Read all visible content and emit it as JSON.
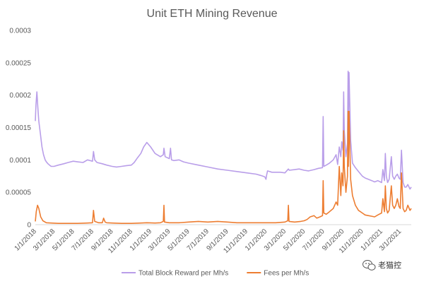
{
  "chart_data": {
    "type": "line",
    "title": "Unit ETH Mining Revenue",
    "xlabel": "",
    "ylabel": "",
    "ylim": [
      0,
      0.0003
    ],
    "yticks": [
      "0",
      "0.00005",
      "0.0001",
      "0.00015",
      "0.0002",
      "0.00025",
      "0.0003"
    ],
    "xticks": [
      "1/1/2018",
      "3/1/2018",
      "5/1/2018",
      "7/1/2018",
      "9/1/2018",
      "11/1/2018",
      "1/1/2019",
      "3/1/2019",
      "5/1/2019",
      "7/1/2019",
      "9/1/2019",
      "11/1/2019",
      "1/1/2020",
      "3/1/2020",
      "5/1/2020",
      "7/1/2020",
      "9/1/2020",
      "11/1/2020",
      "1/1/2021",
      "3/1/2021"
    ],
    "xlim": [
      "2018-01-01",
      "2021-04-05"
    ],
    "grid": false,
    "legend": "bottom",
    "series": [
      {
        "name": "Total Block Reward per Mh/s",
        "color": "#b99ee9",
        "x": [
          "2018-01-01",
          "2018-01-03",
          "2018-01-06",
          "2018-01-09",
          "2018-01-12",
          "2018-01-17",
          "2018-01-22",
          "2018-01-27",
          "2018-02-01",
          "2018-02-05",
          "2018-02-10",
          "2018-02-15",
          "2018-02-20",
          "2018-03-01",
          "2018-03-15",
          "2018-04-01",
          "2018-04-15",
          "2018-05-01",
          "2018-05-15",
          "2018-06-01",
          "2018-06-15",
          "2018-07-01",
          "2018-07-04",
          "2018-07-08",
          "2018-07-15",
          "2018-08-01",
          "2018-08-15",
          "2018-09-01",
          "2018-09-15",
          "2018-10-01",
          "2018-10-15",
          "2018-11-01",
          "2018-11-10",
          "2018-11-20",
          "2018-12-01",
          "2018-12-10",
          "2018-12-20",
          "2019-01-01",
          "2019-01-15",
          "2019-02-01",
          "2019-02-10",
          "2019-02-12",
          "2019-02-16",
          "2019-03-01",
          "2019-03-05",
          "2019-03-08",
          "2019-03-15",
          "2019-04-01",
          "2019-04-15",
          "2019-05-01",
          "2019-06-01",
          "2019-07-01",
          "2019-08-01",
          "2019-09-01",
          "2019-10-01",
          "2019-11-01",
          "2019-12-01",
          "2019-12-15",
          "2019-12-28",
          "2020-01-01",
          "2020-01-03",
          "2020-01-06",
          "2020-01-20",
          "2020-02-01",
          "2020-02-15",
          "2020-03-01",
          "2020-03-12",
          "2020-03-15",
          "2020-04-01",
          "2020-04-15",
          "2020-05-01",
          "2020-05-15",
          "2020-06-01",
          "2020-06-15",
          "2020-06-28",
          "2020-06-30",
          "2020-07-02",
          "2020-07-10",
          "2020-07-20",
          "2020-08-01",
          "2020-08-10",
          "2020-08-15",
          "2020-08-20",
          "2020-08-25",
          "2020-08-28",
          "2020-09-01",
          "2020-09-03",
          "2020-09-05",
          "2020-09-10",
          "2020-09-15",
          "2020-09-17",
          "2020-09-18",
          "2020-09-20",
          "2020-09-25",
          "2020-10-01",
          "2020-10-10",
          "2020-10-20",
          "2020-11-01",
          "2020-11-10",
          "2020-11-20",
          "2020-12-01",
          "2020-12-10",
          "2020-12-20",
          "2021-01-01",
          "2021-01-05",
          "2021-01-10",
          "2021-01-13",
          "2021-01-16",
          "2021-01-20",
          "2021-01-25",
          "2021-02-01",
          "2021-02-05",
          "2021-02-10",
          "2021-02-15",
          "2021-02-20",
          "2021-02-25",
          "2021-03-01",
          "2021-03-05",
          "2021-03-10",
          "2021-03-15",
          "2021-03-20",
          "2021-03-25",
          "2021-04-01",
          "2021-04-05"
        ],
        "y": [
          0.00016,
          0.000185,
          0.000205,
          0.00018,
          0.00016,
          0.00014,
          0.00012,
          0.000108,
          0.0001,
          9.7e-05,
          9.4e-05,
          9.2e-05,
          9e-05,
          9e-05,
          9.2e-05,
          9.4e-05,
          9.6e-05,
          9.8e-05,
          9.7e-05,
          9.6e-05,
          0.0001,
          9.8e-05,
          0.000113,
          0.0001,
          9.6e-05,
          9.4e-05,
          9.2e-05,
          9e-05,
          8.9e-05,
          9e-05,
          9.1e-05,
          9.2e-05,
          9.6e-05,
          0.000103,
          0.00011,
          0.00012,
          0.000127,
          0.00012,
          0.00011,
          0.000105,
          0.000108,
          0.000118,
          0.000105,
          0.000102,
          0.000118,
          0.0001,
          9.9e-05,
          0.0001,
          9.7e-05,
          9.5e-05,
          9.2e-05,
          8.9e-05,
          8.6e-05,
          8.4e-05,
          8.2e-05,
          8e-05,
          7.8e-05,
          7.6e-05,
          7.4e-05,
          7e-05,
          7.6e-05,
          8.3e-05,
          8.1e-05,
          8.1e-05,
          8.1e-05,
          8e-05,
          8.6e-05,
          8.4e-05,
          8.5e-05,
          8.6e-05,
          8.4e-05,
          8.3e-05,
          8.5e-05,
          8.7e-05,
          8.8e-05,
          0.000167,
          9e-05,
          9.2e-05,
          9.5e-05,
          0.0001,
          0.000108,
          9.3e-05,
          0.00012,
          0.000105,
          0.000128,
          0.000115,
          0.000205,
          0.000145,
          0.000105,
          0.000125,
          0.000237,
          0.000145,
          0.000235,
          0.00013,
          9.5e-05,
          8.8e-05,
          8.2e-05,
          7.5e-05,
          7.2e-05,
          7e-05,
          6.8e-05,
          6.6e-05,
          6.8e-05,
          6.5e-05,
          8.5e-05,
          6.8e-05,
          0.00011,
          7.5e-05,
          6.5e-05,
          7e-05,
          0.000105,
          7.5e-05,
          7e-05,
          7.5e-05,
          7.8e-05,
          7.2e-05,
          7e-05,
          0.000115,
          6.5e-05,
          5.8e-05,
          5.8e-05,
          6.2e-05,
          5.5e-05,
          5.8e-05
        ]
      },
      {
        "name": "Fees per Mh/s",
        "color": "#ed7d31",
        "x": [
          "2018-01-01",
          "2018-01-04",
          "2018-01-08",
          "2018-01-12",
          "2018-01-18",
          "2018-01-25",
          "2018-02-05",
          "2018-02-20",
          "2018-03-15",
          "2018-04-15",
          "2018-05-15",
          "2018-06-15",
          "2018-07-01",
          "2018-07-04",
          "2018-07-08",
          "2018-07-20",
          "2018-08-01",
          "2018-08-05",
          "2018-08-10",
          "2018-08-15",
          "2018-09-01",
          "2018-10-01",
          "2018-11-01",
          "2018-12-01",
          "2018-12-20",
          "2019-01-15",
          "2019-02-01",
          "2019-02-10",
          "2019-02-12",
          "2019-02-14",
          "2019-03-01",
          "2019-04-01",
          "2019-05-01",
          "2019-06-01",
          "2019-07-01",
          "2019-08-01",
          "2019-09-01",
          "2019-10-01",
          "2019-11-01",
          "2019-12-01",
          "2020-01-01",
          "2020-02-01",
          "2020-03-01",
          "2020-03-10",
          "2020-03-12",
          "2020-03-14",
          "2020-04-01",
          "2020-04-20",
          "2020-05-01",
          "2020-05-10",
          "2020-05-20",
          "2020-06-01",
          "2020-06-10",
          "2020-06-20",
          "2020-06-28",
          "2020-06-30",
          "2020-07-02",
          "2020-07-10",
          "2020-07-20",
          "2020-08-01",
          "2020-08-10",
          "2020-08-15",
          "2020-08-20",
          "2020-08-25",
          "2020-08-28",
          "2020-09-01",
          "2020-09-03",
          "2020-09-05",
          "2020-09-10",
          "2020-09-15",
          "2020-09-17",
          "2020-09-18",
          "2020-09-20",
          "2020-09-25",
          "2020-10-01",
          "2020-10-10",
          "2020-10-20",
          "2020-11-01",
          "2020-11-10",
          "2020-11-20",
          "2020-12-01",
          "2020-12-10",
          "2020-12-20",
          "2021-01-01",
          "2021-01-05",
          "2021-01-10",
          "2021-01-13",
          "2021-01-16",
          "2021-01-20",
          "2021-01-25",
          "2021-02-01",
          "2021-02-05",
          "2021-02-10",
          "2021-02-15",
          "2021-02-20",
          "2021-02-25",
          "2021-03-01",
          "2021-03-05",
          "2021-03-10",
          "2021-03-15",
          "2021-03-20",
          "2021-03-25",
          "2021-04-01",
          "2021-04-05"
        ],
        "y": [
          5e-06,
          2e-05,
          3e-05,
          2.5e-05,
          1.2e-05,
          6e-06,
          3e-06,
          2.5e-06,
          2e-06,
          2e-06,
          2e-06,
          2.5e-06,
          3e-06,
          2.2e-05,
          5e-06,
          3e-06,
          3e-06,
          1e-05,
          4e-06,
          3e-06,
          2.5e-06,
          2e-06,
          2e-06,
          2.5e-06,
          3e-06,
          2.5e-06,
          3e-06,
          5e-06,
          3e-05,
          4e-06,
          3e-06,
          3e-06,
          4e-06,
          5e-06,
          4e-06,
          5e-06,
          4e-06,
          3e-06,
          3e-06,
          3e-06,
          3e-06,
          3e-06,
          4e-06,
          6e-06,
          3e-05,
          5e-06,
          4e-06,
          5e-06,
          6e-06,
          8e-06,
          1.2e-05,
          1.4e-05,
          1e-05,
          1.2e-05,
          1.4e-05,
          6.8e-05,
          1.8e-05,
          1.6e-05,
          2e-05,
          2.5e-05,
          3.5e-05,
          3e-05,
          9e-05,
          4.5e-05,
          8e-05,
          6e-05,
          0.000145,
          9e-05,
          5e-05,
          7.5e-05,
          0.000175,
          9e-05,
          0.000175,
          7e-05,
          4.5e-05,
          3e-05,
          2.2e-05,
          1.8e-05,
          1.5e-05,
          1.4e-05,
          1.3e-05,
          1.2e-05,
          1.5e-05,
          1.8e-05,
          4e-05,
          2e-05,
          6e-05,
          2.5e-05,
          1.8e-05,
          2.2e-05,
          6e-05,
          3e-05,
          2.5e-05,
          3e-05,
          4e-05,
          2.8e-05,
          2.5e-05,
          8e-05,
          2.5e-05,
          2e-05,
          2.2e-05,
          3e-05,
          2.2e-05,
          2.5e-05
        ]
      }
    ]
  },
  "watermark": {
    "text": "老猫控",
    "icon": "wechat-icon"
  }
}
